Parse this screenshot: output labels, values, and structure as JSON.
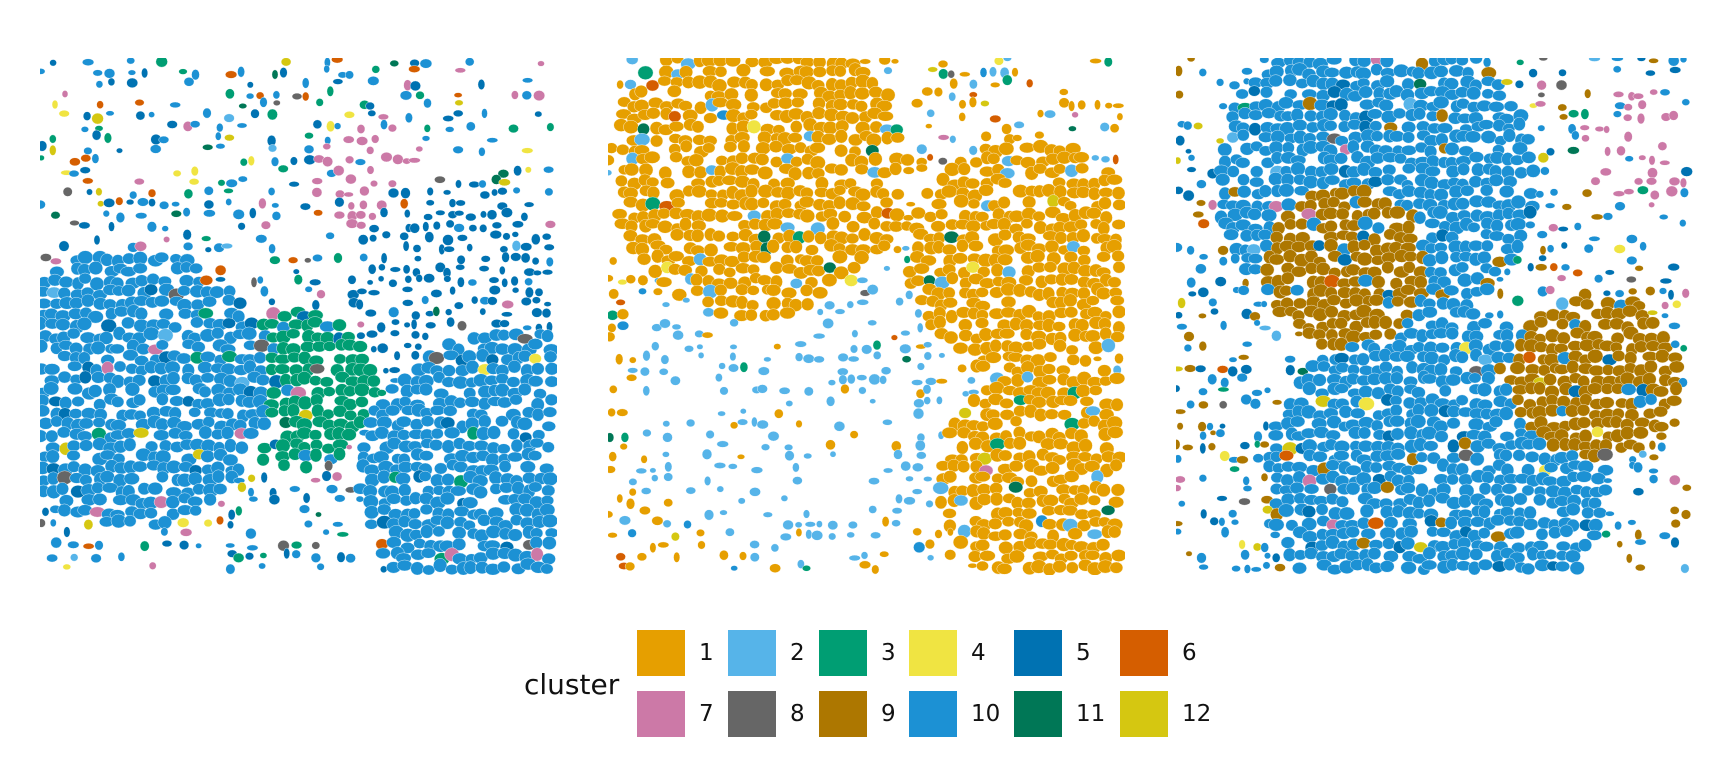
{
  "chart_data": {
    "type": "scatter",
    "title": "",
    "panels": [
      {
        "name": "",
        "dominant_clusters": [
          "10",
          "5",
          "3",
          "7",
          "8",
          "6",
          "4",
          "12"
        ],
        "cluster_mix": {
          "1": 0.0,
          "2": 0.03,
          "3": 0.1,
          "4": 0.04,
          "5": 0.2,
          "6": 0.05,
          "7": 0.06,
          "8": 0.05,
          "9": 0.0,
          "10": 0.42,
          "11": 0.02,
          "12": 0.03
        }
      },
      {
        "name": "",
        "dominant_clusters": [
          "1",
          "2",
          "11",
          "3",
          "6",
          "4",
          "12",
          "7"
        ],
        "cluster_mix": {
          "1": 0.55,
          "2": 0.25,
          "3": 0.04,
          "4": 0.03,
          "5": 0.0,
          "6": 0.03,
          "7": 0.02,
          "8": 0.01,
          "9": 0.0,
          "10": 0.02,
          "11": 0.03,
          "12": 0.02
        }
      },
      {
        "name": "",
        "dominant_clusters": [
          "10",
          "5",
          "9",
          "7",
          "12",
          "6",
          "3"
        ],
        "cluster_mix": {
          "1": 0.0,
          "2": 0.02,
          "3": 0.03,
          "4": 0.02,
          "5": 0.18,
          "6": 0.03,
          "7": 0.04,
          "8": 0.01,
          "9": 0.18,
          "10": 0.45,
          "11": 0.01,
          "12": 0.03
        }
      }
    ],
    "legend": {
      "title": "cluster",
      "position": "bottom",
      "entries": [
        {
          "label": "1",
          "color": "#E69F00"
        },
        {
          "label": "2",
          "color": "#56B4E9"
        },
        {
          "label": "3",
          "color": "#009E73"
        },
        {
          "label": "4",
          "color": "#F0E442"
        },
        {
          "label": "5",
          "color": "#0072B2"
        },
        {
          "label": "6",
          "color": "#D55E00"
        },
        {
          "label": "7",
          "color": "#CC79A7"
        },
        {
          "label": "8",
          "color": "#666666"
        },
        {
          "label": "9",
          "color": "#AD7700"
        },
        {
          "label": "10",
          "color": "#1C91D4"
        },
        {
          "label": "11",
          "color": "#007756"
        },
        {
          "label": "12",
          "color": "#D5C711"
        }
      ]
    },
    "axes": "none",
    "grid": false
  }
}
